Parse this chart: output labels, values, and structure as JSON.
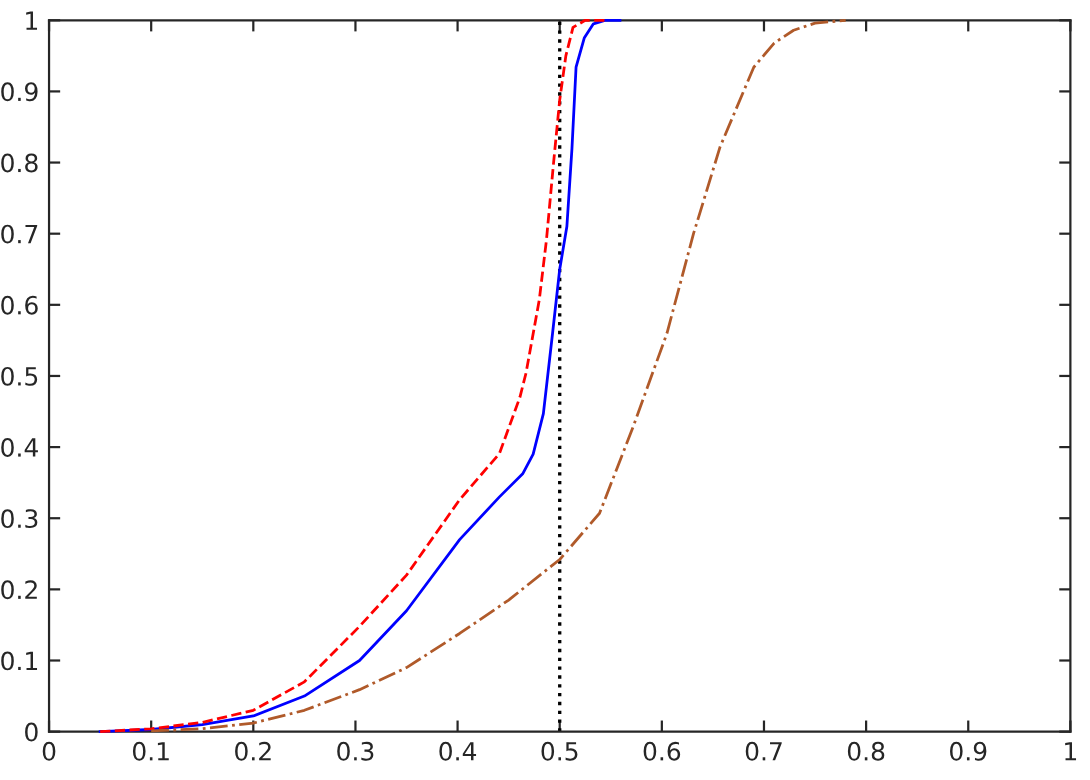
{
  "chart_data": {
    "type": "line",
    "xlim": [
      0,
      1
    ],
    "ylim": [
      0,
      1
    ],
    "xticks": [
      0,
      0.1,
      0.2,
      0.3,
      0.4,
      0.5,
      0.6,
      0.7,
      0.8,
      0.9,
      1
    ],
    "yticks": [
      0,
      0.1,
      0.2,
      0.3,
      0.4,
      0.5,
      0.6,
      0.7,
      0.8,
      0.9,
      1
    ],
    "grid": false,
    "legend": false,
    "series": [
      {
        "color": "#0000ff",
        "line_style": "solid",
        "x": [
          0.05,
          0.1,
          0.15,
          0.2,
          0.25,
          0.304,
          0.35,
          0.402,
          0.441,
          0.464,
          0.474,
          0.484,
          0.493,
          0.5,
          0.507,
          0.512,
          0.516,
          0.524,
          0.533,
          0.545,
          0.559
        ],
        "values": [
          0,
          0.003,
          0.01,
          0.022,
          0.05,
          0.1,
          0.17,
          0.27,
          0.33,
          0.363,
          0.39,
          0.447,
          0.56,
          0.65,
          0.71,
          0.82,
          0.934,
          0.975,
          0.995,
          1,
          1
        ]
      },
      {
        "color": "#ff0000",
        "line_style": "dashed",
        "x": [
          0.05,
          0.1,
          0.15,
          0.2,
          0.25,
          0.304,
          0.35,
          0.402,
          0.441,
          0.461,
          0.467,
          0.48,
          0.487,
          0.494,
          0.5,
          0.506,
          0.513,
          0.525,
          0.545
        ],
        "values": [
          0,
          0.004,
          0.013,
          0.03,
          0.07,
          0.148,
          0.22,
          0.326,
          0.391,
          0.47,
          0.504,
          0.607,
          0.691,
          0.8,
          0.888,
          0.95,
          0.99,
          1,
          1
        ]
      },
      {
        "color": "#b05a2a",
        "line_style": "dashdot",
        "x": [
          0.1,
          0.15,
          0.2,
          0.25,
          0.304,
          0.35,
          0.402,
          0.45,
          0.5,
          0.539,
          0.572,
          0.605,
          0.631,
          0.657,
          0.69,
          0.71,
          0.729,
          0.75,
          0.78
        ],
        "values": [
          0.001,
          0.004,
          0.012,
          0.03,
          0.059,
          0.09,
          0.138,
          0.185,
          0.242,
          0.307,
          0.429,
          0.56,
          0.7,
          0.822,
          0.934,
          0.968,
          0.986,
          0.996,
          1
        ]
      }
    ],
    "ref_lines": [
      {
        "axis": "x",
        "value": 0.5,
        "color": "#000000",
        "line_style": "dotted"
      }
    ]
  }
}
